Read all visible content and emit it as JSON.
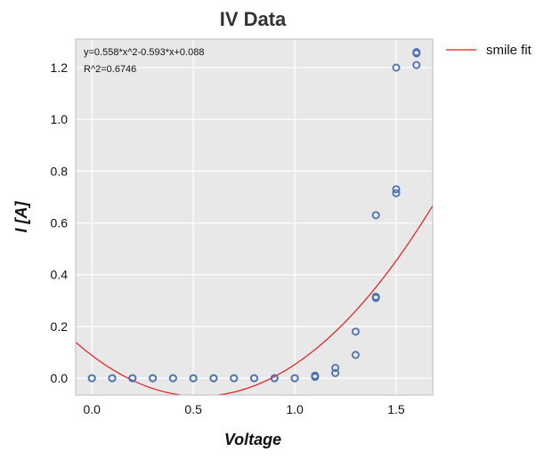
{
  "chart_data": {
    "type": "scatter",
    "title": "IV Data",
    "xlabel": "Voltage",
    "ylabel": "I [A]",
    "xlim": [
      -0.08,
      1.68
    ],
    "ylim": [
      -0.065,
      1.31
    ],
    "xticks": [
      0.0,
      0.5,
      1.0,
      1.5
    ],
    "xtick_labels": [
      "0.0",
      "0.5",
      "1.0",
      "1.5"
    ],
    "yticks": [
      0.0,
      0.2,
      0.4,
      0.6,
      0.8,
      1.0,
      1.2
    ],
    "ytick_labels": [
      "0.0",
      "0.2",
      "0.4",
      "0.6",
      "0.8",
      "1.0",
      "1.2"
    ],
    "grid": true,
    "annotations": [
      "y=0.558*x^2-0.593*x+0.088",
      "R^2=0.6746"
    ],
    "legend_position": "outside-right",
    "series": [
      {
        "kind": "scatter",
        "color": "#4c72b0",
        "points": [
          [
            0.0,
            0.0
          ],
          [
            0.0,
            0.0
          ],
          [
            0.1,
            0.0
          ],
          [
            0.1,
            0.0
          ],
          [
            0.2,
            0.0
          ],
          [
            0.2,
            0.0
          ],
          [
            0.3,
            0.0
          ],
          [
            0.3,
            0.0
          ],
          [
            0.4,
            0.0
          ],
          [
            0.4,
            0.0
          ],
          [
            0.5,
            0.0
          ],
          [
            0.5,
            0.0
          ],
          [
            0.6,
            0.0
          ],
          [
            0.6,
            0.0
          ],
          [
            0.7,
            0.0
          ],
          [
            0.7,
            0.0
          ],
          [
            0.8,
            0.0
          ],
          [
            0.8,
            0.0
          ],
          [
            0.9,
            0.0
          ],
          [
            0.9,
            0.0
          ],
          [
            1.0,
            0.0
          ],
          [
            1.0,
            0.0
          ],
          [
            1.1,
            0.005
          ],
          [
            1.1,
            0.01
          ],
          [
            1.2,
            0.02
          ],
          [
            1.2,
            0.04
          ],
          [
            1.3,
            0.09
          ],
          [
            1.3,
            0.18
          ],
          [
            1.4,
            0.31
          ],
          [
            1.4,
            0.315
          ],
          [
            1.4,
            0.63
          ],
          [
            1.5,
            0.715
          ],
          [
            1.5,
            0.73
          ],
          [
            1.5,
            1.2
          ],
          [
            1.6,
            1.21
          ],
          [
            1.6,
            1.255
          ],
          [
            1.6,
            1.26
          ]
        ]
      },
      {
        "kind": "line",
        "name": "smile fit",
        "color": "#e41a1c",
        "coefficients": [
          0.558,
          -0.593,
          0.088
        ]
      }
    ]
  }
}
